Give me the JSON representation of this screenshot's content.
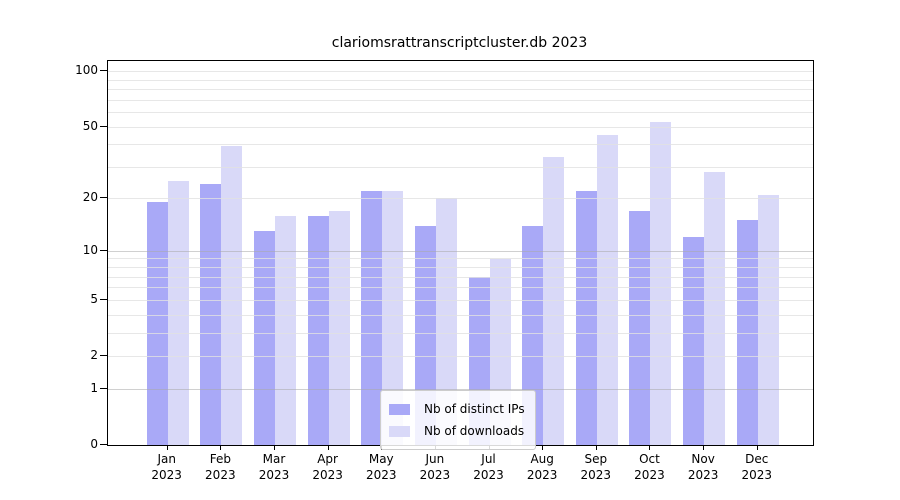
{
  "title": "clariomsrattranscriptcluster.db 2023",
  "chart_data": {
    "type": "bar",
    "title": "clariomsrattranscriptcluster.db 2023",
    "scale": "log1p",
    "categories": [
      "Jan",
      "Feb",
      "Mar",
      "Apr",
      "May",
      "Jun",
      "Jul",
      "Aug",
      "Sep",
      "Oct",
      "Nov",
      "Dec"
    ],
    "year_label": "2023",
    "series": [
      {
        "name": "Nb of distinct IPs",
        "color": "#a9a9f7",
        "values": [
          19,
          24,
          13,
          16,
          22,
          14,
          7,
          14,
          22,
          17,
          12,
          15
        ]
      },
      {
        "name": "Nb of downloads",
        "color": "#d9d9f8",
        "values": [
          25,
          39,
          16,
          17,
          22,
          20,
          9,
          34,
          45,
          53,
          28,
          21
        ]
      }
    ],
    "xlabel": "",
    "ylabel": "",
    "ylim": [
      0,
      115
    ],
    "y_ticks": [
      100,
      50,
      20,
      10,
      5,
      2,
      1,
      0
    ],
    "grid": true,
    "gridline_values": [
      1,
      2,
      3,
      4,
      5,
      6,
      7,
      8,
      9,
      10,
      20,
      30,
      40,
      50,
      60,
      70,
      80,
      90,
      100
    ],
    "grid_emphasis_values": [
      1,
      10
    ],
    "legend_position": "bottom-center"
  },
  "colors": {
    "background": "#ffffff",
    "axis": "#000000",
    "grid_minor": "#e1e1e1",
    "grid_emphasis": "#aaaaaa",
    "ips_bar": "#a9a9f7",
    "downloads_bar": "#d9d9f8",
    "legend_border": "#cccccc"
  }
}
